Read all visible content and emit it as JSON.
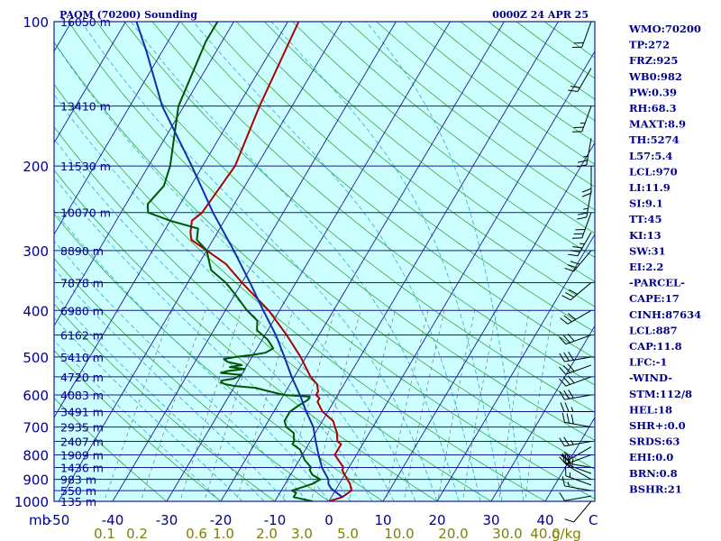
{
  "header": {
    "station": "PAOM (70200) Sounding",
    "time": "0000Z 24 APR 25"
  },
  "colors": {
    "plot_bg": "#ccffff",
    "isobar": "#1a1a9e",
    "isotherm": "#1a1a9e",
    "dry_adiabat": "#33aa33",
    "moist_adiabat": "#33aacc",
    "mixing_ratio": "#777777",
    "temperature": "#b00000",
    "dewpoint": "#005500",
    "parcel": "#1030b0",
    "text": "#00008b",
    "mixing_label": "#808000"
  },
  "stats": [
    "WMO:70200",
    "TP:272",
    "FRZ:925",
    "WB0:982",
    "PW:0.39",
    "RH:68.3",
    "MAXT:8.9",
    "TH:5274",
    "L57:5.4",
    "LCL:970",
    "LI:11.9",
    "SI:9.1",
    "TT:45",
    "KI:13",
    "SW:31",
    "EI:2.2",
    "-PARCEL-",
    "CAPE:17",
    "CINH:87634",
    "LCL:887",
    "CAP:11.8",
    "LFC:-1",
    "-WIND-",
    "STM:112/8",
    "HEL:18",
    "SHR+:0.0",
    "SRDS:63",
    "EHI:0.0",
    "BRN:0.8",
    "BSHR:21"
  ],
  "chart_data": {
    "type": "skew-t log-p",
    "title": "PAOM (70200) Sounding",
    "xlabel": "",
    "x_unit_label": "mb",
    "ylabel": "",
    "pressure_range": [
      1000,
      100
    ],
    "temperature_ticks": [
      -50,
      -40,
      -30,
      -20,
      -10,
      0,
      10,
      20,
      30,
      40
    ],
    "temperature_tick_labels": [
      "-50",
      "-40",
      "-30",
      "-20",
      "-10",
      "0",
      "10",
      "20",
      "30",
      "40"
    ],
    "right_corner_label": "C",
    "mixing_ratio_unit": "g/kg",
    "mixing_ratio_ticks": [
      {
        "label": "0.1",
        "x_c": -41.5
      },
      {
        "label": "0.2",
        "x_c": -35.5
      },
      {
        "label": "0.6",
        "x_c": -24.5
      },
      {
        "label": "1.0",
        "x_c": -19.5
      },
      {
        "label": "2.0",
        "x_c": -11.5
      },
      {
        "label": "3.0",
        "x_c": -5.0
      },
      {
        "label": "5.0",
        "x_c": 3.5
      },
      {
        "label": "10.0",
        "x_c": 13.0
      },
      {
        "label": "20.0",
        "x_c": 23.0
      },
      {
        "label": "30.0",
        "x_c": 33.0
      },
      {
        "label": "40.0",
        "x_c": 40.0
      }
    ],
    "pressure_levels": [
      {
        "p": 100,
        "label": "100",
        "height": "16050 m"
      },
      {
        "p": 150,
        "height": "13410 m"
      },
      {
        "p": 200,
        "label": "200",
        "height": "11530 m"
      },
      {
        "p": 250,
        "height": "10070 m"
      },
      {
        "p": 300,
        "label": "300",
        "height": "8890 m"
      },
      {
        "p": 350,
        "height": "7878 m"
      },
      {
        "p": 400,
        "label": "400",
        "height": "6980 m"
      },
      {
        "p": 450,
        "height": "6162 m"
      },
      {
        "p": 500,
        "label": "500",
        "height": "5410 m"
      },
      {
        "p": 550,
        "height": "4720 m"
      },
      {
        "p": 600,
        "label": "600",
        "height": "4083 m"
      },
      {
        "p": 650,
        "height": "3491 m"
      },
      {
        "p": 700,
        "label": "700",
        "height": "2935 m"
      },
      {
        "p": 750,
        "height": "2407 m"
      },
      {
        "p": 800,
        "label": "800",
        "height": "1909 m"
      },
      {
        "p": 850,
        "height": "1436 m"
      },
      {
        "p": 900,
        "label": "900",
        "height": "983 m"
      },
      {
        "p": 950,
        "height": "550 m"
      },
      {
        "p": 1000,
        "label": "1000",
        "height": "135 m"
      }
    ],
    "series": [
      {
        "name": "temperature",
        "points": [
          [
            1000,
            0
          ],
          [
            980,
            2
          ],
          [
            950,
            3
          ],
          [
            920,
            2
          ],
          [
            900,
            1
          ],
          [
            880,
            0
          ],
          [
            860,
            -1
          ],
          [
            850,
            -1
          ],
          [
            800,
            -4
          ],
          [
            780,
            -4
          ],
          [
            760,
            -4
          ],
          [
            750,
            -5
          ],
          [
            720,
            -6
          ],
          [
            700,
            -7
          ],
          [
            680,
            -8
          ],
          [
            650,
            -11
          ],
          [
            620,
            -13
          ],
          [
            610,
            -13
          ],
          [
            600,
            -14
          ],
          [
            590,
            -14
          ],
          [
            570,
            -15
          ],
          [
            550,
            -17
          ],
          [
            500,
            -21
          ],
          [
            450,
            -26
          ],
          [
            400,
            -32
          ],
          [
            350,
            -40
          ],
          [
            320,
            -45
          ],
          [
            300,
            -50
          ],
          [
            285,
            -54
          ],
          [
            275,
            -55
          ],
          [
            260,
            -56
          ],
          [
            250,
            -55
          ],
          [
            200,
            -54
          ],
          [
            150,
            -56
          ],
          [
            100,
            -58
          ]
        ]
      },
      {
        "name": "dewpoint",
        "points": [
          [
            1000,
            -3
          ],
          [
            990,
            -5
          ],
          [
            980,
            -7
          ],
          [
            960,
            -7
          ],
          [
            950,
            -8
          ],
          [
            930,
            -6
          ],
          [
            920,
            -5
          ],
          [
            900,
            -4
          ],
          [
            880,
            -6
          ],
          [
            860,
            -7
          ],
          [
            850,
            -7
          ],
          [
            820,
            -9
          ],
          [
            800,
            -10
          ],
          [
            780,
            -11
          ],
          [
            760,
            -13
          ],
          [
            750,
            -13
          ],
          [
            720,
            -14
          ],
          [
            700,
            -16
          ],
          [
            680,
            -17
          ],
          [
            660,
            -17
          ],
          [
            650,
            -17
          ],
          [
            630,
            -16
          ],
          [
            615,
            -15
          ],
          [
            605,
            -15
          ],
          [
            600,
            -20
          ],
          [
            590,
            -23
          ],
          [
            580,
            -26
          ],
          [
            575,
            -30
          ],
          [
            570,
            -32
          ],
          [
            565,
            -33
          ],
          [
            560,
            -33
          ],
          [
            555,
            -31
          ],
          [
            545,
            -30
          ],
          [
            540,
            -34
          ],
          [
            535,
            -33
          ],
          [
            530,
            -30
          ],
          [
            525,
            -33
          ],
          [
            520,
            -31
          ],
          [
            512,
            -34
          ],
          [
            505,
            -35
          ],
          [
            500,
            -33
          ],
          [
            495,
            -30
          ],
          [
            490,
            -28
          ],
          [
            480,
            -27
          ],
          [
            460,
            -29
          ],
          [
            440,
            -32
          ],
          [
            420,
            -33
          ],
          [
            400,
            -36
          ],
          [
            370,
            -40
          ],
          [
            350,
            -43
          ],
          [
            330,
            -47
          ],
          [
            320,
            -48
          ],
          [
            300,
            -50
          ],
          [
            285,
            -53
          ],
          [
            270,
            -54
          ],
          [
            260,
            -60
          ],
          [
            250,
            -65
          ],
          [
            240,
            -66
          ],
          [
            220,
            -65
          ],
          [
            200,
            -66
          ],
          [
            150,
            -71
          ],
          [
            110,
            -73
          ],
          [
            100,
            -73
          ]
        ]
      },
      {
        "name": "parcel",
        "points": [
          [
            980,
            2
          ],
          [
            960,
            0.5
          ],
          [
            940,
            -1
          ],
          [
            930,
            -1.5
          ],
          [
            920,
            -2
          ],
          [
            900,
            -2.5
          ],
          [
            850,
            -5
          ],
          [
            800,
            -7
          ],
          [
            750,
            -9
          ],
          [
            700,
            -11
          ],
          [
            650,
            -14
          ],
          [
            600,
            -17
          ],
          [
            550,
            -20.5
          ],
          [
            500,
            -24
          ],
          [
            450,
            -28
          ],
          [
            400,
            -33
          ],
          [
            350,
            -38.5
          ],
          [
            300,
            -45
          ],
          [
            250,
            -53
          ],
          [
            200,
            -62
          ],
          [
            150,
            -74
          ],
          [
            115,
            -83
          ],
          [
            100,
            -88
          ]
        ]
      }
    ],
    "wind_barbs": [
      {
        "p": 1000,
        "dir": 220,
        "spd": 10
      },
      {
        "p": 975,
        "dir": 260,
        "spd": 10
      },
      {
        "p": 950,
        "dir": 280,
        "spd": 15
      },
      {
        "p": 925,
        "dir": 290,
        "spd": 15
      },
      {
        "p": 900,
        "dir": 300,
        "spd": 20
      },
      {
        "p": 875,
        "dir": 290,
        "spd": 15
      },
      {
        "p": 850,
        "dir": 280,
        "spd": 20
      },
      {
        "p": 800,
        "dir": 250,
        "spd": 20
      },
      {
        "p": 770,
        "dir": 240,
        "spd": 20
      },
      {
        "p": 750,
        "dir": 260,
        "spd": 25
      },
      {
        "p": 700,
        "dir": 280,
        "spd": 30
      },
      {
        "p": 650,
        "dir": 270,
        "spd": 25
      },
      {
        "p": 600,
        "dir": 260,
        "spd": 30
      },
      {
        "p": 550,
        "dir": 250,
        "spd": 30
      },
      {
        "p": 520,
        "dir": 250,
        "spd": 30
      },
      {
        "p": 500,
        "dir": 260,
        "spd": 30
      },
      {
        "p": 450,
        "dir": 250,
        "spd": 30
      },
      {
        "p": 400,
        "dir": 240,
        "spd": 30
      },
      {
        "p": 350,
        "dir": 230,
        "spd": 30
      },
      {
        "p": 300,
        "dir": 220,
        "spd": 30
      },
      {
        "p": 275,
        "dir": 210,
        "spd": 35
      },
      {
        "p": 250,
        "dir": 200,
        "spd": 30
      },
      {
        "p": 225,
        "dir": 190,
        "spd": 25
      },
      {
        "p": 200,
        "dir": 180,
        "spd": 20
      },
      {
        "p": 175,
        "dir": 190,
        "spd": 25
      },
      {
        "p": 150,
        "dir": 200,
        "spd": 25
      },
      {
        "p": 125,
        "dir": 210,
        "spd": 20
      },
      {
        "p": 100,
        "dir": 200,
        "spd": 20
      }
    ],
    "grid": true
  }
}
